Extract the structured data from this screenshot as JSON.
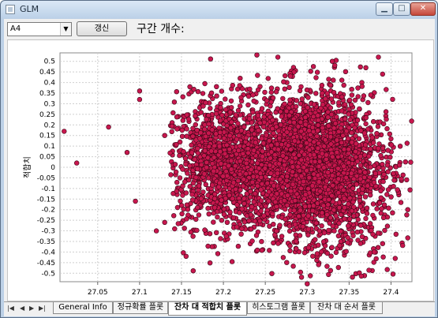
{
  "window": {
    "title": "GLM"
  },
  "toolbar": {
    "variable_select": "A4",
    "refresh_label": "갱신",
    "bins_label": "구간 개수:"
  },
  "tabs": [
    {
      "label": "General Info"
    },
    {
      "label": "정규확률 플롯"
    },
    {
      "label": "잔차 대 적합치 플롯"
    },
    {
      "label": "히스토그램 플롯"
    },
    {
      "label": "잔차 대 순서 플롯"
    }
  ],
  "active_tab": 2,
  "chart_data": {
    "type": "scatter",
    "ylabel": "적합치",
    "xlabel": "",
    "xlim": [
      27.005,
      27.425
    ],
    "ylim": [
      -0.54,
      0.54
    ],
    "x_ticks": [
      "27.05",
      "27.1",
      "27.15",
      "27.2",
      "27.25",
      "27.3",
      "27.35",
      "27.4"
    ],
    "y_ticks": [
      "0.5",
      "0.45",
      "0.4",
      "0.35",
      "0.3",
      "0.25",
      "0.2",
      "0.15",
      "0.1",
      "0.05",
      "0",
      "-0.05",
      "-0.1",
      "-0.15",
      "-0.2",
      "-0.25",
      "-0.3",
      "-0.35",
      "-0.4",
      "-0.45",
      "-0.5"
    ],
    "grid": true,
    "marker_color": "#c8174e",
    "marker_edge": "#3a0716",
    "points": [
      [
        27.01,
        0.17
      ],
      [
        27.025,
        0.02
      ],
      [
        27.063,
        0.19
      ],
      [
        27.085,
        0.07
      ],
      [
        27.1,
        0.36
      ],
      [
        27.1,
        0.32
      ],
      [
        27.095,
        -0.16
      ],
      [
        27.13,
        -0.26
      ],
      [
        27.12,
        -0.3
      ],
      [
        27.13,
        0.15
      ],
      [
        27.385,
        0.52
      ],
      [
        27.39,
        -0.36
      ],
      [
        27.42,
        -0.2
      ],
      [
        27.41,
        0.01
      ],
      [
        27.38,
        -0.4
      ],
      [
        27.405,
        -0.43
      ],
      [
        27.3,
        -0.55
      ],
      [
        27.265,
        0.52
      ],
      [
        27.33,
        0.5
      ],
      [
        27.37,
        0.47
      ],
      [
        27.39,
        0.44
      ],
      [
        27.24,
        0.53
      ],
      [
        27.16,
        0.38
      ],
      [
        27.22,
        0.42
      ]
    ],
    "clusters": [
      {
        "cx": 27.2,
        "cy": 0.02,
        "sx": 0.035,
        "sy": 0.15,
        "n": 1200
      },
      {
        "cx": 27.3,
        "cy": 0.01,
        "sx": 0.04,
        "sy": 0.17,
        "n": 2400
      },
      {
        "cx": 27.34,
        "cy": -0.05,
        "sx": 0.035,
        "sy": 0.2,
        "n": 500
      }
    ]
  }
}
